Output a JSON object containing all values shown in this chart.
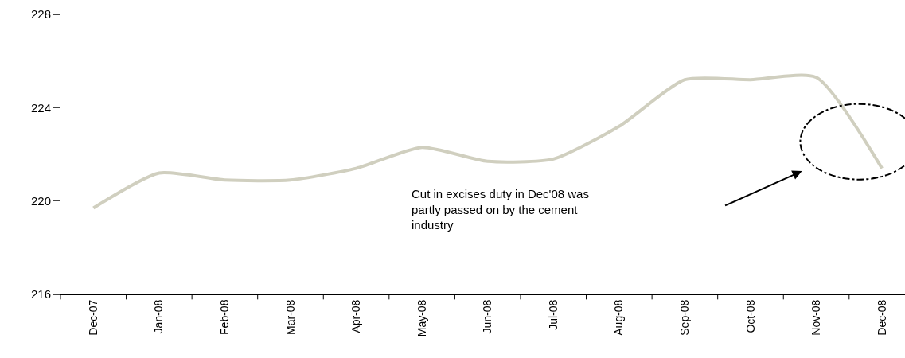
{
  "chart_data": {
    "type": "line",
    "categories": [
      "Dec-07",
      "Jan-08",
      "Feb-08",
      "Mar-08",
      "Apr-08",
      "May-08",
      "Jun-08",
      "Jul-08",
      "Aug-08",
      "Sep-08",
      "Oct-08",
      "Nov-08",
      "Dec-08"
    ],
    "series": [
      {
        "color": "#d0cfbf",
        "values": [
          219.7,
          221.2,
          220.9,
          220.9,
          221.4,
          222.3,
          221.7,
          221.8,
          223.2,
          225.2,
          225.2,
          225.3,
          221.4
        ]
      }
    ],
    "ylim": [
      216,
      228
    ],
    "yticks": [
      216,
      220,
      224,
      228
    ],
    "marker": "none",
    "line_style": "solid",
    "annotations": [
      "Cut in excises duty in Dec'08 was\npartly passed on by the cement\nindustry"
    ]
  }
}
